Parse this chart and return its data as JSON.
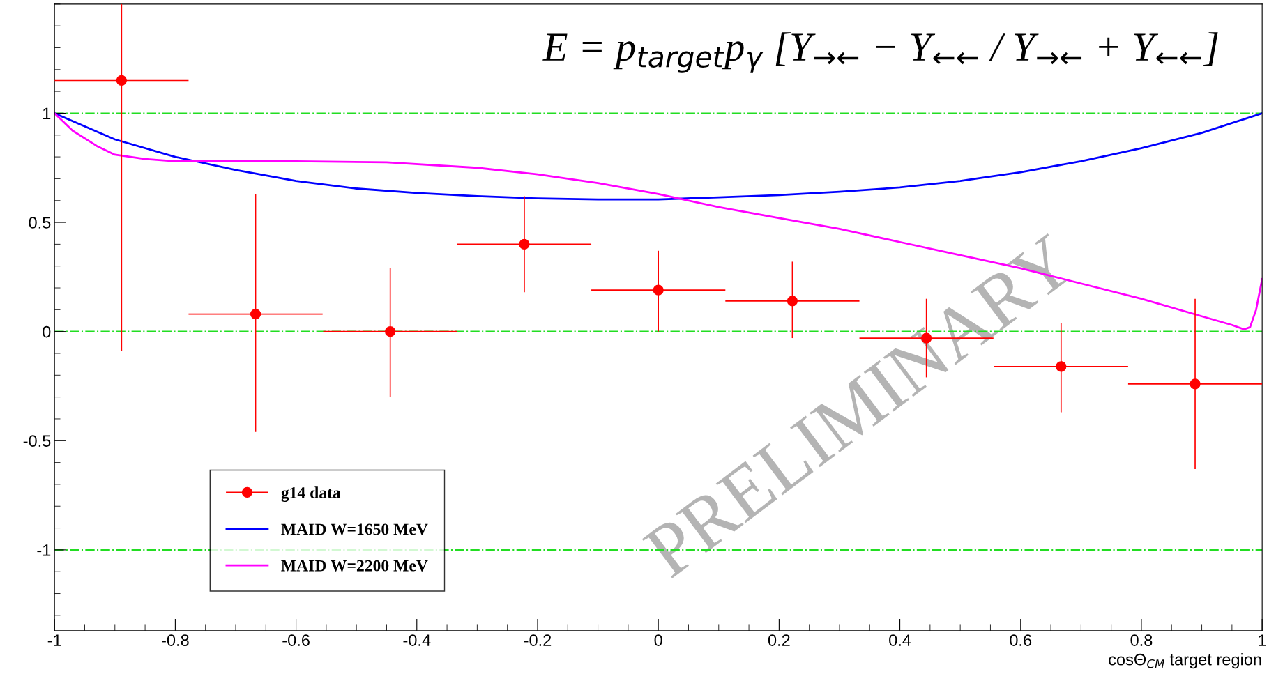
{
  "chart_data": {
    "type": "scatter",
    "xlabel": "cosΘ$_{CM}$ target region",
    "annotations": [
      "E = p$_{target}$p$_{γ}$ [Y$_{→←}$ − Y$_{←←}$ / Y$_{→←}$ + Y$_{←←}$]",
      "PRELIMINARY"
    ],
    "xlim": [
      -1,
      1
    ],
    "ylim": [
      -1.37,
      1.5
    ],
    "xticks": [
      -1,
      -0.8,
      -0.6,
      -0.4,
      -0.2,
      0,
      0.2,
      0.4,
      0.6,
      0.8,
      1
    ],
    "yticks": [
      -1,
      -0.5,
      0,
      0.5,
      1
    ],
    "grid": false,
    "legend": "bottom left",
    "ref_lines": [
      {
        "axis": "y",
        "value": 1,
        "color": "#22dd22",
        "line_style": "dashdot"
      },
      {
        "axis": "y",
        "value": 0,
        "color": "#22dd22",
        "line_style": "dashdot"
      },
      {
        "axis": "y",
        "value": -1,
        "color": "#22dd22",
        "line_style": "dashdot"
      }
    ],
    "series": [
      {
        "name": "g14 data",
        "color": "#ff0000",
        "marker": "circle",
        "x": [
          -0.889,
          -0.667,
          -0.444,
          -0.222,
          0,
          0.222,
          0.444,
          0.667,
          0.889
        ],
        "values": [
          1.15,
          0.08,
          0,
          0.4,
          0.19,
          0.14,
          -0.03,
          -0.16,
          -0.24
        ],
        "errors": [
          [
            -0.09,
            1.5
          ],
          [
            -0.46,
            0.63
          ],
          [
            -0.3,
            0.29
          ],
          [
            0.18,
            0.62
          ],
          [
            0,
            0.37
          ],
          [
            -0.03,
            0.32
          ],
          [
            -0.21,
            0.15
          ],
          [
            -0.37,
            0.04
          ],
          [
            -0.63,
            0.15
          ]
        ],
        "xerrors": [
          0.111,
          0.111,
          0.111,
          0.111,
          0.111,
          0.111,
          0.111,
          0.111,
          0.111
        ]
      },
      {
        "name": "MAID W=1650 MeV",
        "type": "line",
        "color": "#0000ff",
        "x": [
          -1,
          -0.9,
          -0.8,
          -0.7,
          -0.6,
          -0.5,
          -0.4,
          -0.3,
          -0.2,
          -0.1,
          0,
          0.1,
          0.2,
          0.3,
          0.4,
          0.5,
          0.6,
          0.7,
          0.8,
          0.9,
          1
        ],
        "values": [
          1,
          0.88,
          0.8,
          0.74,
          0.69,
          0.655,
          0.635,
          0.62,
          0.61,
          0.605,
          0.605,
          0.615,
          0.625,
          0.64,
          0.66,
          0.69,
          0.73,
          0.78,
          0.84,
          0.91,
          1
        ]
      },
      {
        "name": "MAID W=2200 MeV",
        "type": "line",
        "color": "#ff00ff",
        "x": [
          -1,
          -0.97,
          -0.93,
          -0.9,
          -0.85,
          -0.8,
          -0.6,
          -0.45,
          -0.3,
          -0.2,
          -0.1,
          0,
          0.1,
          0.2,
          0.3,
          0.4,
          0.5,
          0.6,
          0.7,
          0.8,
          0.9,
          0.95,
          0.97,
          0.98,
          0.99,
          1
        ],
        "values": [
          1,
          0.92,
          0.85,
          0.81,
          0.79,
          0.78,
          0.78,
          0.775,
          0.75,
          0.72,
          0.68,
          0.63,
          0.57,
          0.52,
          0.47,
          0.41,
          0.35,
          0.29,
          0.22,
          0.15,
          0.07,
          0.03,
          0.01,
          0.02,
          0.1,
          0.24
        ]
      }
    ]
  }
}
